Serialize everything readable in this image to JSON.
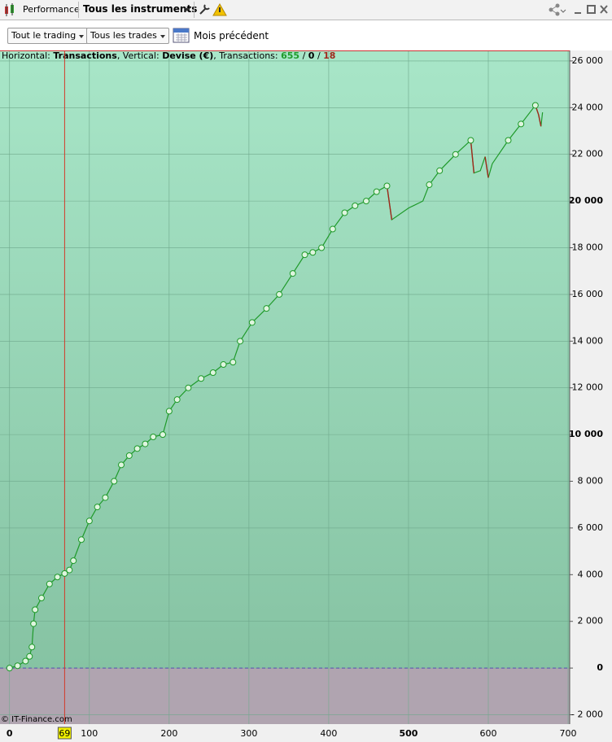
{
  "toolbar": {
    "tab": "Performance",
    "instruments": "Tous les instruments"
  },
  "filters": {
    "trading": "Tout le trading",
    "trades": "Tous les trades",
    "period": "Mois précédent"
  },
  "chart_data": {
    "type": "line",
    "header": [
      "Horizontal: ",
      "Transactions",
      ", Vertical: ",
      "Devise (€)",
      ", Transactions: ",
      "655",
      " / ",
      "0",
      " / ",
      "18"
    ],
    "x": [
      0,
      10,
      20,
      25,
      28,
      30,
      32,
      40,
      50,
      60,
      69,
      75,
      80,
      90,
      100,
      110,
      120,
      131,
      140,
      150,
      160,
      170,
      180,
      192,
      200,
      210,
      224,
      240,
      255,
      268,
      280,
      289,
      304,
      322,
      338,
      355,
      370,
      380,
      391,
      405,
      420,
      433,
      447,
      460,
      473,
      479,
      500,
      518,
      526,
      539,
      559,
      578,
      582,
      590,
      596,
      600,
      605,
      625,
      641,
      659,
      663,
      666,
      668
    ],
    "values": [
      0,
      100,
      300,
      500,
      900,
      1900,
      2500,
      3000,
      3600,
      3900,
      4050,
      4200,
      4600,
      5500,
      6300,
      6900,
      7300,
      8000,
      8700,
      9100,
      9400,
      9600,
      9900,
      10000,
      11000,
      11500,
      12000,
      12400,
      12650,
      13000,
      13100,
      14000,
      14800,
      15400,
      16000,
      16900,
      17700,
      17800,
      18000,
      18800,
      19500,
      19800,
      20000,
      20400,
      20650,
      19200,
      19700,
      20000,
      20700,
      21300,
      22000,
      22600,
      21200,
      21300,
      21900,
      21000,
      21600,
      22600,
      23300,
      24100,
      23700,
      23200,
      23800
    ],
    "color": "#1f9a2a",
    "drawdown_color": "#a0281c",
    "marker_fill": "#dff5df",
    "xlim": [
      -12,
      702
    ],
    "ylim": [
      -2400,
      26450
    ],
    "xticks": [
      {
        "value": 0,
        "label": "0",
        "bold": true
      },
      100,
      200,
      300,
      400,
      {
        "value": 500,
        "label": "500",
        "bold": true
      },
      600,
      700
    ],
    "yticks": [
      {
        "value": -2000,
        "label": "- 2 000"
      },
      {
        "value": 0,
        "label": "0",
        "bold": true
      },
      {
        "value": 2000,
        "label": "2 000"
      },
      {
        "value": 4000,
        "label": "4 000"
      },
      {
        "value": 6000,
        "label": "6 000"
      },
      {
        "value": 8000,
        "label": "8 000"
      },
      {
        "value": 10000,
        "label": "10 000",
        "bold": true
      },
      {
        "value": 12000,
        "label": "12 000"
      },
      {
        "value": 14000,
        "label": "14 000"
      },
      {
        "value": 16000,
        "label": "16 000"
      },
      {
        "value": 18000,
        "label": "18 000"
      },
      {
        "value": 20000,
        "label": "20 000",
        "bold": true
      },
      {
        "value": 22000,
        "label": "22 000"
      },
      {
        "value": 24000,
        "label": "24 000"
      },
      {
        "value": 26000,
        "label": "26 000"
      }
    ],
    "grid": true,
    "cursor_x": 69,
    "cursor_color": "#d23a2a",
    "baseline": 0
  },
  "footer": "© IT-Finance.com"
}
